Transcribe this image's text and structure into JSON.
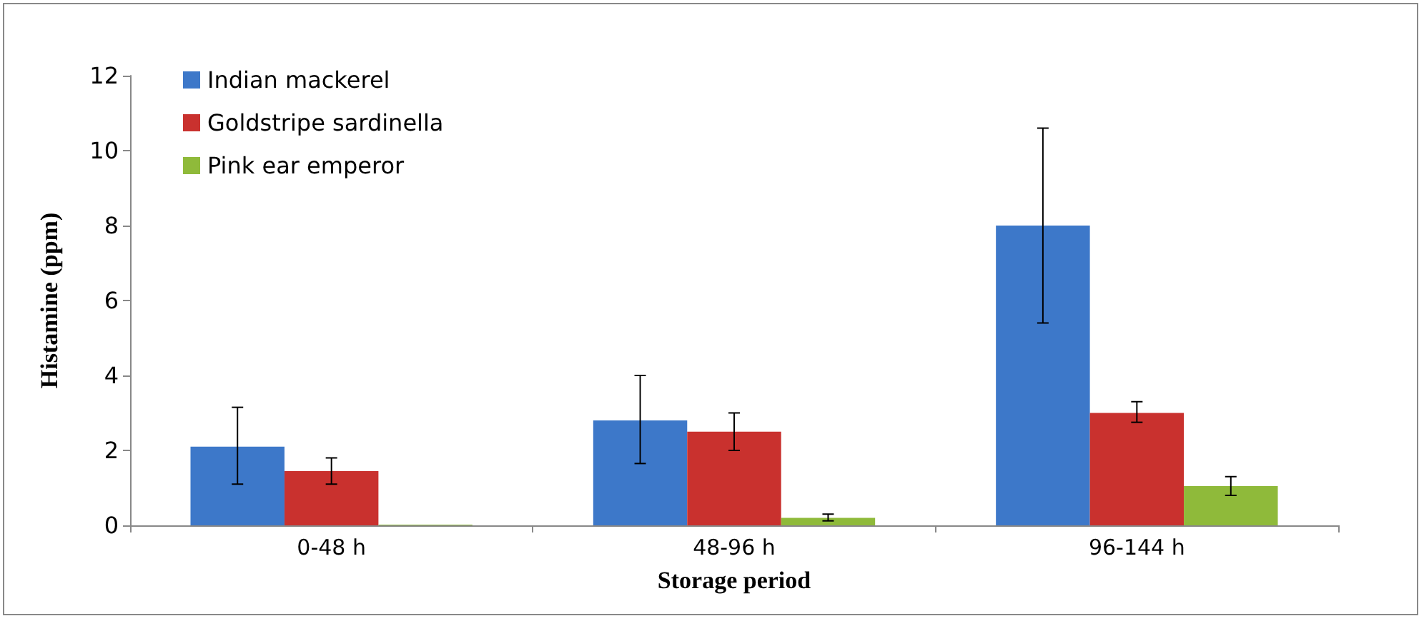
{
  "chart_data": {
    "type": "bar",
    "xlabel": "Storage period",
    "ylabel": "Histamine (ppm)",
    "categories": [
      "0-48 h",
      "48-96 h",
      "96-144 h"
    ],
    "series": [
      {
        "name": "Indian mackerel",
        "color": "#3d78c9",
        "values": [
          2.1,
          2.8,
          8.0
        ],
        "errors": [
          [
            1.1,
            3.15
          ],
          [
            1.65,
            4.0
          ],
          [
            5.4,
            10.6
          ]
        ]
      },
      {
        "name": "Goldstripe sardinella",
        "color": "#c9312e",
        "values": [
          1.45,
          2.5,
          3.0
        ],
        "errors": [
          [
            1.1,
            1.8
          ],
          [
            2.0,
            3.0
          ],
          [
            2.75,
            3.3
          ]
        ]
      },
      {
        "name": "Pink ear emperor",
        "color": "#8fba3a",
        "values": [
          0.02,
          0.2,
          1.05
        ],
        "errors": [
          null,
          [
            0.12,
            0.3
          ],
          [
            0.8,
            1.3
          ]
        ]
      }
    ],
    "ylim": [
      0,
      12
    ],
    "yticks": [
      0,
      2,
      4,
      6,
      8,
      10,
      12
    ],
    "grid": false,
    "legend": "top left"
  }
}
